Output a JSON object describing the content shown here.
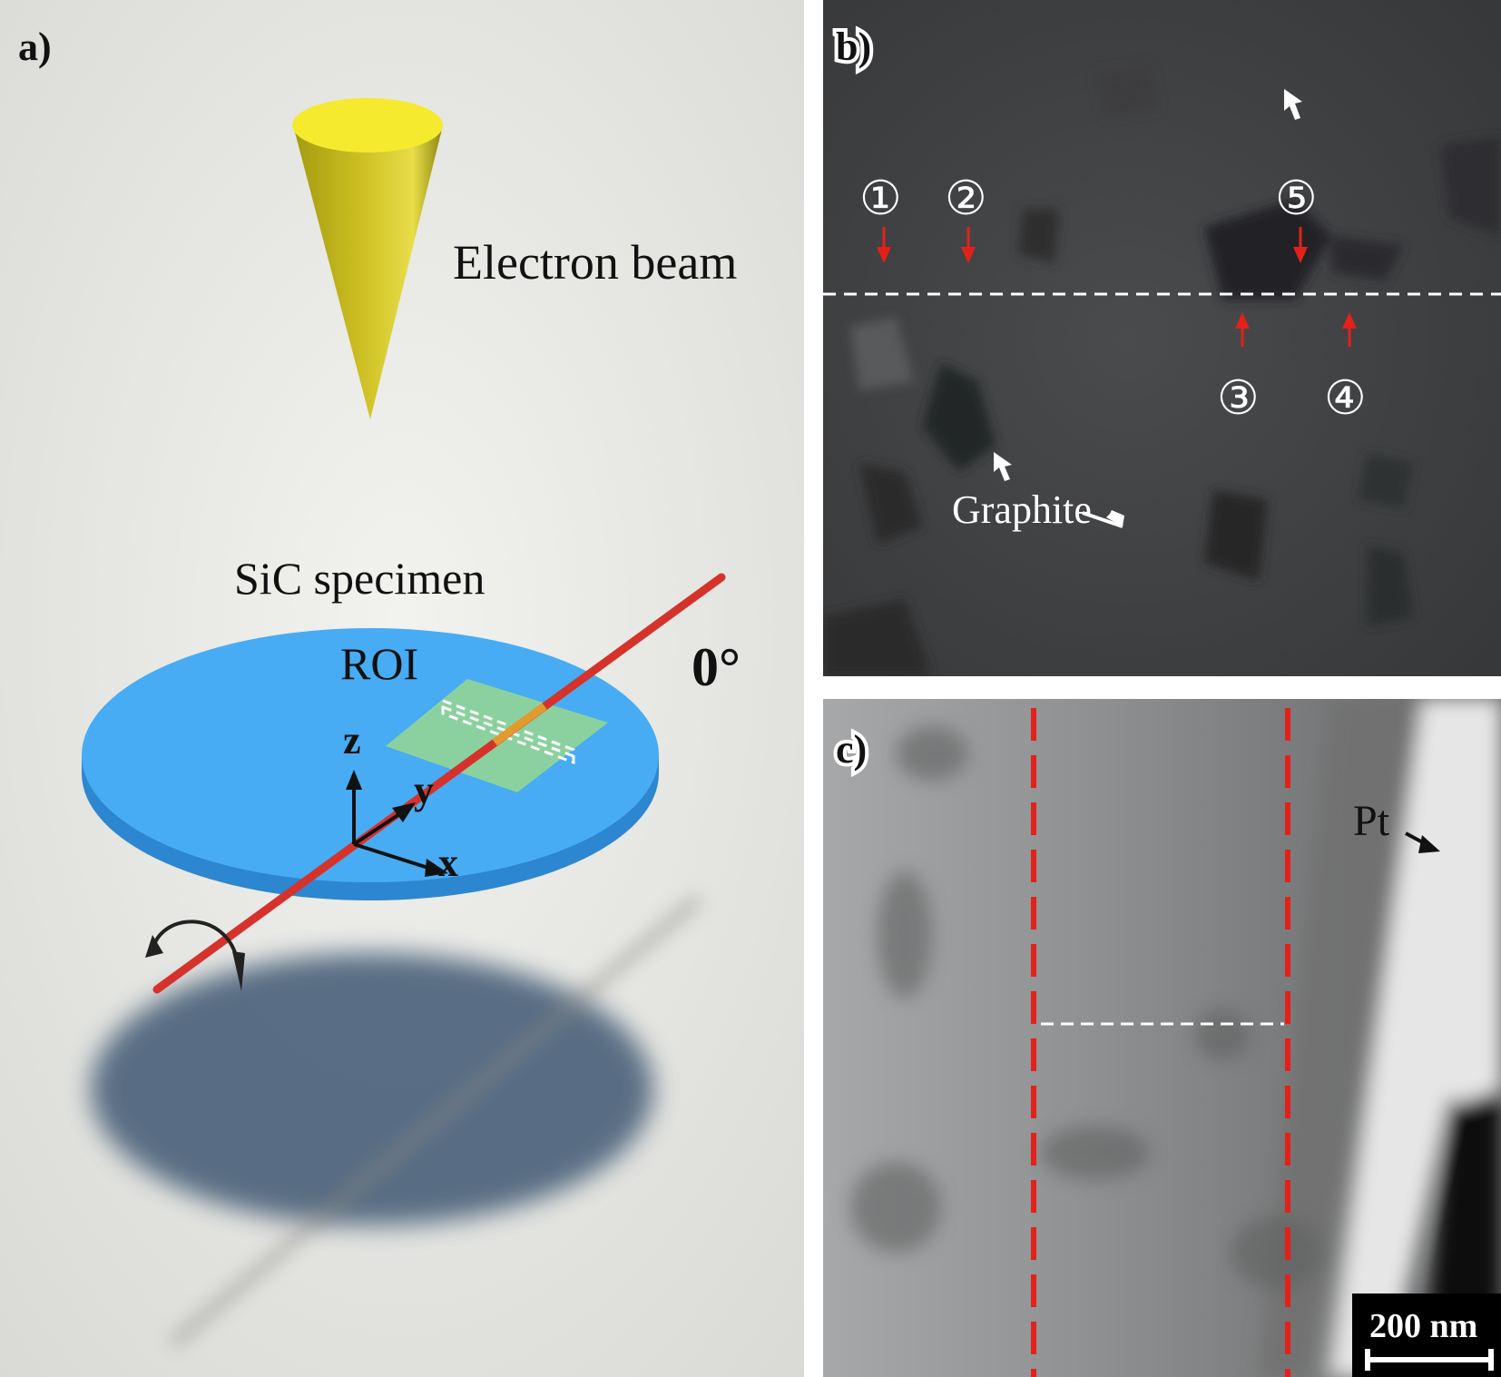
{
  "panel_a": {
    "letter": "a)",
    "beam_label": "Electron beam",
    "specimen_label": "SiC specimen",
    "roi_label": "ROI",
    "angle_label": "0°",
    "axis_z": "z",
    "axis_y": "y",
    "axis_x": "x"
  },
  "panel_b": {
    "letter": "b)",
    "markers": [
      "①",
      "②",
      "③",
      "④",
      "⑤"
    ],
    "graphite_label": "Graphite"
  },
  "panel_c": {
    "letter": "c)",
    "pt_label": "Pt",
    "scale_bar": "200 nm"
  }
}
